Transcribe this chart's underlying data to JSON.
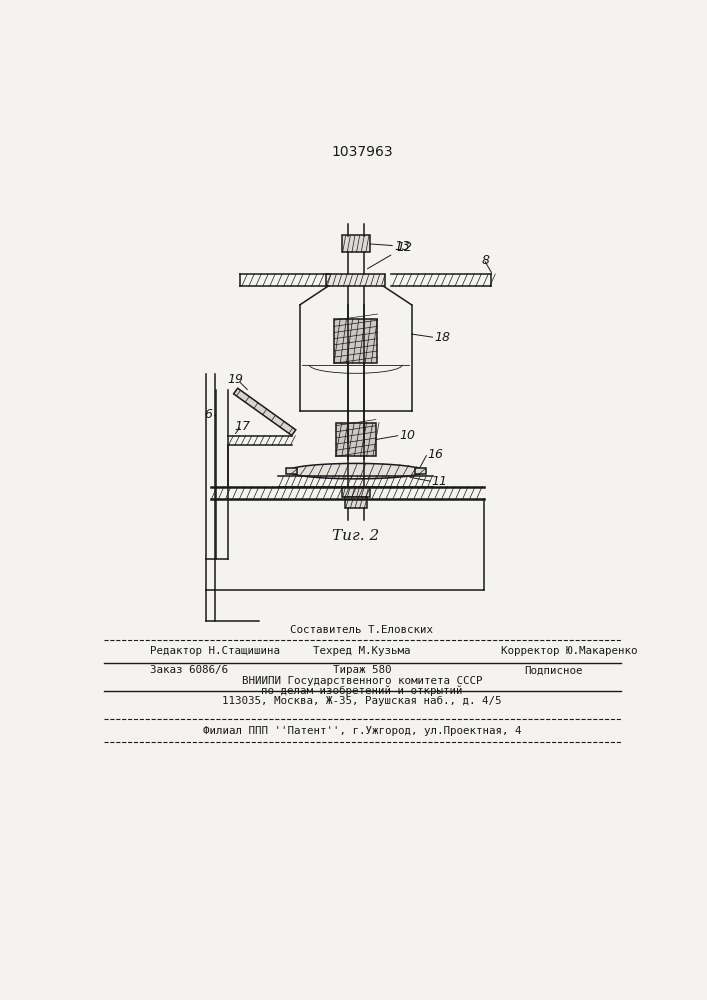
{
  "title": "1037963",
  "fig_label": "Τиг. 2",
  "bg_color": "#f5f3f0",
  "line_color": "#1a1a1a",
  "lw_main": 1.1,
  "lw_thick": 1.8,
  "lw_thin": 0.6,
  "footer": {
    "line1": "Составитель Т.Еловских",
    "editor": "Редактор Н.Стащишина",
    "tehred": "Техред М.Кузьма",
    "corrector": "Корректор Ю.Макаренко",
    "zakaz": "Заказ 6086/6",
    "tirazh": "Тираж 580",
    "podpisnoe": "Подписное",
    "vniip1": "ВНИИПИ Государственного комитета СССР",
    "vniip2": "по делам изобретений и открытий",
    "vniip3": "113035, Москва, Ж-35, Раушская наб., д. 4/5",
    "filial": "Филиал ППП ''Патент'', г.Ужгород, ул.Проектная, 4"
  }
}
